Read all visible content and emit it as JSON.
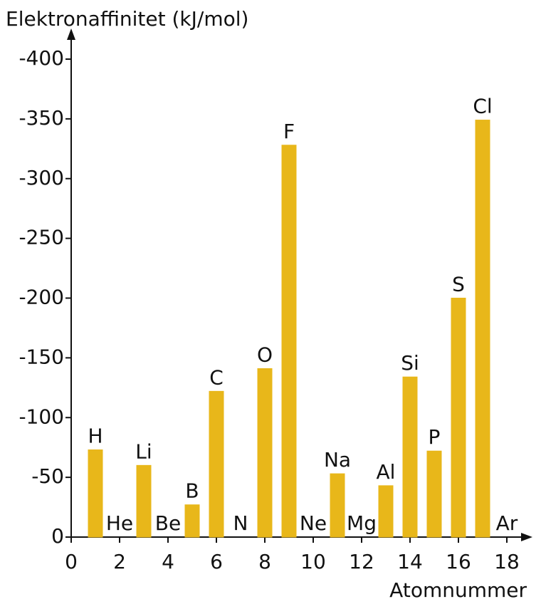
{
  "chart_data": {
    "type": "bar",
    "title": "Elektronaffinitet (kJ/mol)",
    "x_label": "Atomnummer",
    "x": [
      1,
      2,
      3,
      4,
      5,
      6,
      7,
      8,
      9,
      10,
      11,
      12,
      13,
      14,
      15,
      16,
      17,
      18
    ],
    "values": [
      -73,
      0,
      -60,
      0,
      -27,
      -122,
      0,
      -141,
      -328,
      0,
      -53,
      0,
      -43,
      -134,
      -72,
      -200,
      -349,
      0
    ],
    "point_labels": [
      "H",
      "He",
      "Li",
      "Be",
      "B",
      "C",
      "N",
      "O",
      "F",
      "Ne",
      "Na",
      "Mg",
      "Al",
      "Si",
      "P",
      "S",
      "Cl",
      "Ar"
    ],
    "color": "#e8b71a",
    "xlim": [
      0,
      18
    ],
    "xticks": [
      0,
      2,
      4,
      6,
      8,
      10,
      12,
      14,
      16,
      18
    ],
    "ylim": [
      0,
      -400
    ],
    "yticks": [
      0,
      -50,
      -100,
      -150,
      -200,
      -250,
      -300,
      -350,
      -400
    ],
    "grid": false
  }
}
